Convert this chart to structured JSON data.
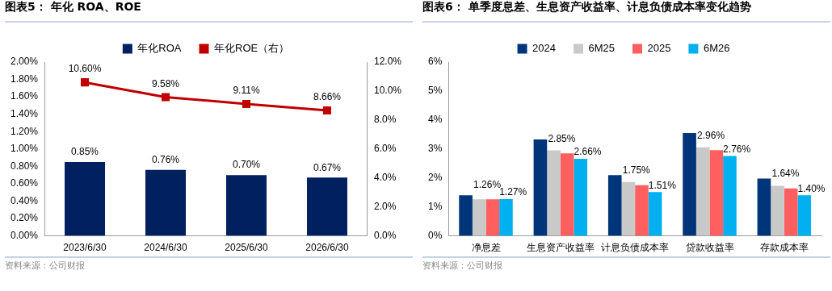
{
  "chart_data": [
    {
      "type": "bar",
      "title": "图表5： 年化 ROA、ROE",
      "categories": [
        "2023/6/30",
        "2024/6/30",
        "2025/6/30",
        "2026/6/30"
      ],
      "series": [
        {
          "name": "年化ROA",
          "color": "#002060",
          "values": [
            0.85,
            0.76,
            0.7,
            0.67
          ],
          "value_labels": [
            "0.85%",
            "0.76%",
            "0.70%",
            "0.67%"
          ]
        },
        {
          "name": "年化ROE（右）",
          "type": "line",
          "axis": "y2",
          "color": "#c00000",
          "values": [
            10.6,
            9.58,
            9.11,
            8.66
          ],
          "value_labels": [
            "10.60%",
            "9.58%",
            "9.11%",
            "8.66%"
          ]
        }
      ],
      "ylim": [
        0,
        2
      ],
      "yticks": [
        {
          "value": 0,
          "label": "0.00%"
        },
        {
          "value": 0.2,
          "label": "0.20%"
        },
        {
          "value": 0.4,
          "label": "0.40%"
        },
        {
          "value": 0.6,
          "label": "0.60%"
        },
        {
          "value": 0.8,
          "label": "0.80%"
        },
        {
          "value": 1,
          "label": "1.00%"
        },
        {
          "value": 1.2,
          "label": "1.20%"
        },
        {
          "value": 1.4,
          "label": "1.40%"
        },
        {
          "value": 1.6,
          "label": "1.60%"
        },
        {
          "value": 1.8,
          "label": "1.80%"
        },
        {
          "value": 2,
          "label": "2.00%"
        }
      ],
      "y2lim": [
        0,
        12
      ],
      "y2ticks": [
        {
          "value": 0,
          "label": "0.0%"
        },
        {
          "value": 2,
          "label": "2.0%"
        },
        {
          "value": 4,
          "label": "4.0%"
        },
        {
          "value": 6,
          "label": "6.0%"
        },
        {
          "value": 8,
          "label": "8.0%"
        },
        {
          "value": 10,
          "label": "10.0%"
        },
        {
          "value": 12,
          "label": "12.0%"
        }
      ],
      "legend": "top",
      "grid": false,
      "marker": "square",
      "annotations": [
        "资料来源：公司财报"
      ]
    },
    {
      "type": "bar",
      "title": "图表6： 单季度息差、生息资产收益率、计息负债成本率变化趋势",
      "categories": [
        "净息差",
        "生息资产收益率",
        "计息负债成本率",
        "贷款收益率",
        "存款成本率"
      ],
      "series": [
        {
          "name": "2024",
          "color": "#003579",
          "values": [
            1.4,
            3.33,
            2.1,
            3.55,
            1.98
          ]
        },
        {
          "name": "6M25",
          "color": "#c9c9c9",
          "values": [
            1.26,
            2.95,
            1.86,
            3.06,
            1.73
          ]
        },
        {
          "name": "2025",
          "color": "#ff5f5f",
          "values": [
            1.26,
            2.85,
            1.75,
            2.96,
            1.64
          ],
          "value_labels": [
            "1.26%",
            "2.85%",
            "1.75%",
            "2.96%",
            "1.64%"
          ]
        },
        {
          "name": "6M26",
          "color": "#00b0f0",
          "values": [
            1.27,
            2.66,
            1.51,
            2.76,
            1.4
          ],
          "value_labels": [
            "1.27%",
            "2.66%",
            "1.51%",
            "2.76%",
            "1.40%"
          ]
        }
      ],
      "ylim": [
        0,
        6
      ],
      "yticks": [
        {
          "value": 0,
          "label": "0%"
        },
        {
          "value": 1,
          "label": "1%"
        },
        {
          "value": 2,
          "label": "2%"
        },
        {
          "value": 3,
          "label": "3%"
        },
        {
          "value": 4,
          "label": "4%"
        },
        {
          "value": 5,
          "label": "5%"
        },
        {
          "value": 6,
          "label": "6%"
        }
      ],
      "legend": "top",
      "grid": false,
      "annotations": [
        "资料来源：公司财报"
      ]
    }
  ]
}
